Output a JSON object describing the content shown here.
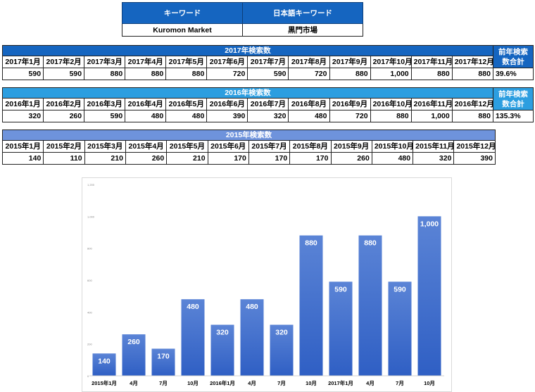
{
  "keyword_table": {
    "header_keyword": "キーワード",
    "header_jp": "日本語キーワード",
    "keyword": "Kuromon Market",
    "keyword_jp": "黒門市場"
  },
  "tables": {
    "y2017": {
      "title": "2017年検索数",
      "months": [
        "2017年1月",
        "2017年2月",
        "2017年3月",
        "2017年4月",
        "2017年5月",
        "2017年6月",
        "2017年7月",
        "2017年8月",
        "2017年9月",
        "2017年10月",
        "2017年11月",
        "2017年12月"
      ],
      "values": [
        "590",
        "590",
        "880",
        "880",
        "880",
        "720",
        "590",
        "720",
        "880",
        "1,000",
        "880",
        "880"
      ],
      "side_label": "前年検索数合計",
      "side_value": "39.6%"
    },
    "y2016": {
      "title": "2016年検索数",
      "months": [
        "2016年1月",
        "2016年2月",
        "2016年3月",
        "2016年4月",
        "2016年5月",
        "2016年6月",
        "2016年7月",
        "2016年8月",
        "2016年9月",
        "2016年10月",
        "2016年11月",
        "2016年12月"
      ],
      "values": [
        "320",
        "260",
        "590",
        "480",
        "480",
        "390",
        "320",
        "480",
        "720",
        "880",
        "1,000",
        "880"
      ],
      "side_label": "前年検索数合計",
      "side_value": "135.3%"
    },
    "y2015": {
      "title": "2015年検索数",
      "months": [
        "2015年1月",
        "2015年2月",
        "2015年3月",
        "2015年4月",
        "2015年5月",
        "2015年6月",
        "2015年7月",
        "2015年8月",
        "2015年9月",
        "2015年10月",
        "2015年11月",
        "2015年12月"
      ],
      "values": [
        "140",
        "110",
        "210",
        "260",
        "210",
        "170",
        "170",
        "170",
        "260",
        "480",
        "320",
        "390"
      ]
    }
  },
  "chart_data": {
    "type": "bar",
    "categories": [
      "2015年1月",
      "4月",
      "7月",
      "10月",
      "2016年1月",
      "4月",
      "7月",
      "10月",
      "2017年1月",
      "4月",
      "7月",
      "10月"
    ],
    "values": [
      140,
      260,
      170,
      480,
      320,
      480,
      320,
      880,
      590,
      880,
      590,
      1000
    ],
    "data_labels": [
      "140",
      "260",
      "170",
      "480",
      "320",
      "480",
      "320",
      "880",
      "590",
      "880",
      "590",
      "1,000"
    ],
    "yticks": [
      "0",
      "200",
      "400",
      "600",
      "800",
      "1,000",
      "1,200"
    ],
    "ylim": [
      0,
      1200
    ],
    "grid": false,
    "colors": {
      "bar_top": "#5b84d6",
      "bar_bottom": "#2f5fc4",
      "label": "#ffffff",
      "axis_text": "#000000"
    }
  }
}
